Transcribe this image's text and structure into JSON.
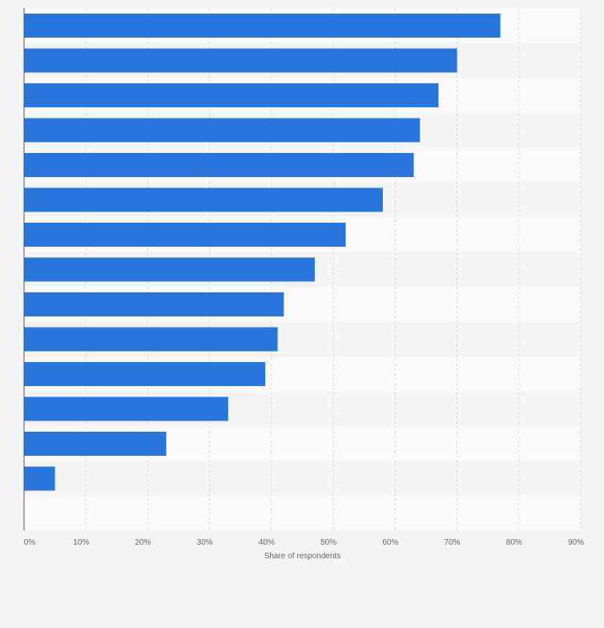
{
  "colors": {
    "bar": "#2876dd",
    "background": "#f4f4f4",
    "band_light": "#fafafa",
    "band_dark": "#f4f4f4",
    "grid": "#d9d9d9",
    "axis": "#555555",
    "tick_text": "#666666"
  },
  "chart_data": {
    "type": "bar",
    "orientation": "horizontal",
    "categories": [
      "",
      "",
      "",
      "",
      "",
      "",
      "",
      "",
      "",
      "",
      "",
      "",
      "",
      ""
    ],
    "values": [
      77,
      70,
      67,
      64,
      63,
      58,
      52,
      47,
      42,
      41,
      39,
      33,
      23,
      5
    ],
    "xlim": [
      0,
      90
    ],
    "x_ticks": [
      0,
      10,
      20,
      30,
      40,
      50,
      60,
      70,
      80,
      90
    ],
    "x_tick_labels": [
      "0%",
      "10%",
      "20%",
      "30%",
      "40%",
      "50%",
      "60%",
      "70%",
      "80%",
      "90%"
    ],
    "xlabel": "Share of respondents",
    "ylabel": "",
    "title": "",
    "grid": true,
    "legend": "none"
  }
}
